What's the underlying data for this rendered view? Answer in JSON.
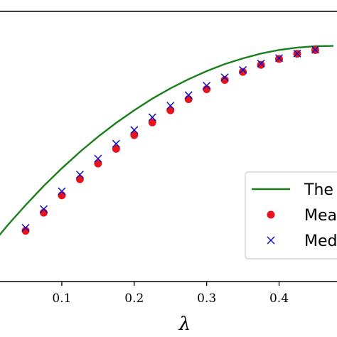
{
  "chart_data": {
    "type": "line",
    "xlabel": "λ",
    "ylabel": "",
    "title": "",
    "xlim": [
      -0.005,
      0.48
    ],
    "ylim": [
      0.0,
      1.0
    ],
    "xticks": [
      0.1,
      0.2,
      0.3,
      0.4
    ],
    "xtick_labels": [
      "0.1",
      "0.2",
      "0.3",
      "0.4"
    ],
    "grid": false,
    "legend_position": "center-right",
    "series": [
      {
        "name": "The",
        "kind": "line",
        "color": "#1a7f1a",
        "x": [
          0.0,
          0.025,
          0.05,
          0.075,
          0.1,
          0.125,
          0.15,
          0.175,
          0.2,
          0.225,
          0.25,
          0.275,
          0.3,
          0.325,
          0.35,
          0.375,
          0.4,
          0.425,
          0.45,
          0.475
        ],
        "y": [
          0.127,
          0.208,
          0.283,
          0.354,
          0.419,
          0.48,
          0.536,
          0.587,
          0.634,
          0.677,
          0.715,
          0.749,
          0.779,
          0.805,
          0.826,
          0.844,
          0.857,
          0.866,
          0.871,
          0.872
        ]
      },
      {
        "name": "Mea",
        "kind": "scatter",
        "marker": "circle",
        "color": "#e8141c",
        "x": [
          0.05,
          0.075,
          0.1,
          0.125,
          0.15,
          0.175,
          0.2,
          0.225,
          0.25,
          0.275,
          0.3,
          0.325,
          0.35,
          0.375,
          0.4,
          0.425,
          0.45
        ],
        "y": [
          0.188,
          0.255,
          0.319,
          0.379,
          0.437,
          0.491,
          0.542,
          0.589,
          0.634,
          0.675,
          0.712,
          0.746,
          0.776,
          0.802,
          0.824,
          0.843,
          0.857
        ]
      },
      {
        "name": "Med",
        "kind": "scatter",
        "marker": "x",
        "color": "#1010c0",
        "x": [
          0.05,
          0.075,
          0.1,
          0.125,
          0.15,
          0.175,
          0.2,
          0.225,
          0.25,
          0.275,
          0.3,
          0.325,
          0.35,
          0.375,
          0.4,
          0.425,
          0.45
        ],
        "y": [
          0.199,
          0.268,
          0.334,
          0.396,
          0.455,
          0.51,
          0.561,
          0.608,
          0.651,
          0.69,
          0.725,
          0.756,
          0.783,
          0.807,
          0.827,
          0.844,
          0.858
        ]
      }
    ]
  }
}
